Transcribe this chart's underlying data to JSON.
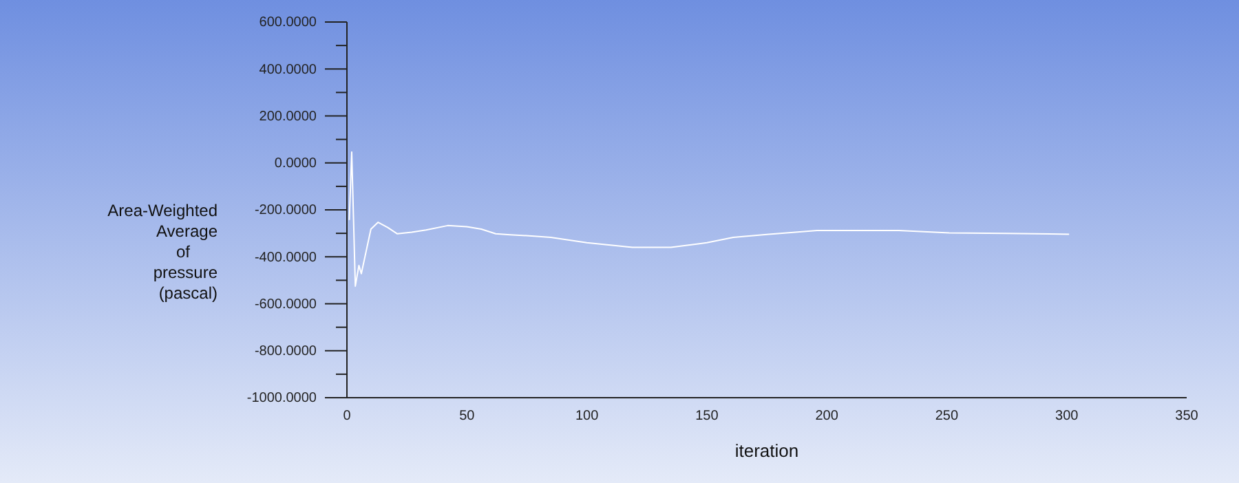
{
  "chart_data": {
    "type": "line",
    "xlabel": "iteration",
    "ylabel": "Area-Weighted Average of pressure (pascal)",
    "x": [
      1,
      2,
      3.5,
      5,
      6,
      10,
      13,
      17,
      21,
      27,
      33,
      42,
      50,
      56,
      62,
      68,
      75,
      85,
      100,
      119,
      135,
      150,
      161,
      175,
      186,
      196,
      210,
      230,
      251,
      275,
      301
    ],
    "series": [
      {
        "color": "#ffffff",
        "values": [
          -243,
          46,
          -525,
          -437,
          -472,
          -282,
          -253,
          -275,
          -302,
          -295,
          -286,
          -267,
          -272,
          -282,
          -302,
          -306,
          -310,
          -317,
          -340,
          -360,
          -360,
          -340,
          -317,
          -305,
          -296,
          -288,
          -288,
          -288,
          -298,
          -300,
          -304
        ]
      }
    ],
    "xlim": [
      0,
      350
    ],
    "xticks": [
      0,
      50,
      100,
      150,
      200,
      250,
      300,
      350
    ],
    "ylim": [
      -1000,
      600
    ],
    "yticks": [
      {
        "value": -1000,
        "label": "-1000.0000"
      },
      {
        "value": -900,
        "label": null
      },
      {
        "value": -800,
        "label": "-800.0000"
      },
      {
        "value": -700,
        "label": null
      },
      {
        "value": -600,
        "label": "-600.0000"
      },
      {
        "value": -500,
        "label": null
      },
      {
        "value": -400,
        "label": "-400.0000"
      },
      {
        "value": -300,
        "label": null
      },
      {
        "value": -200,
        "label": "-200.0000"
      },
      {
        "value": -100,
        "label": null
      },
      {
        "value": 0,
        "label": "0.0000"
      },
      {
        "value": 100,
        "label": null
      },
      {
        "value": 200,
        "label": "200.0000"
      },
      {
        "value": 300,
        "label": null
      },
      {
        "value": 400,
        "label": "400.0000"
      },
      {
        "value": 500,
        "label": null
      },
      {
        "value": 600,
        "label": "600.0000"
      }
    ]
  }
}
